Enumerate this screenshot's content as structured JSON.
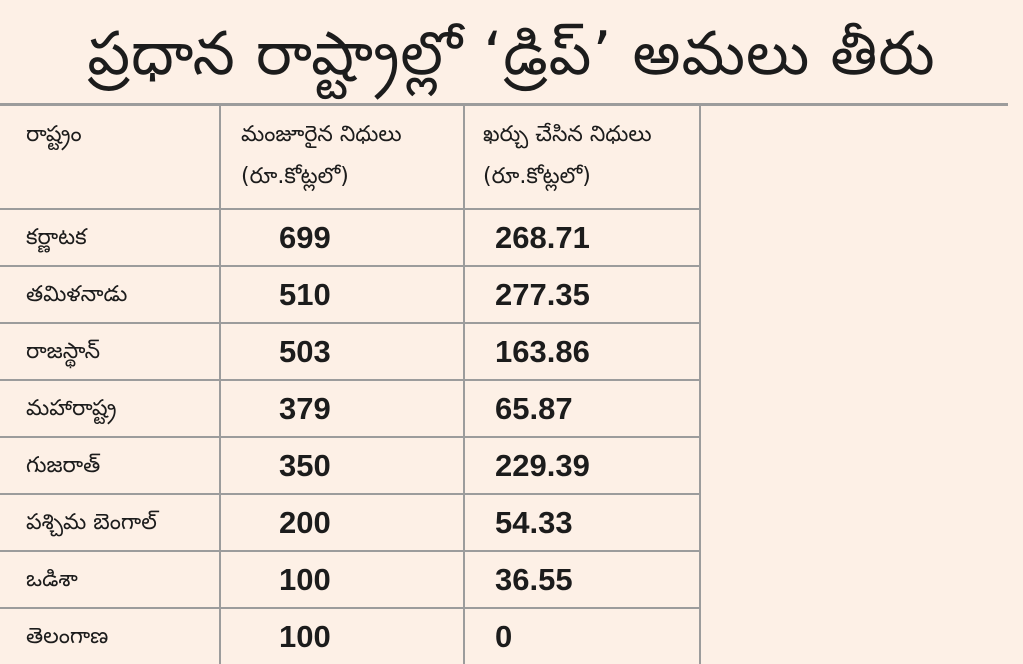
{
  "title": "ప్రధాన రాష్ట్రాల్లో ‘డ్రిప్’ అమలు తీరు",
  "table": {
    "headers": {
      "state": "రాష్ట్రం",
      "sanctioned_line1": "మంజూరైన నిధులు",
      "sanctioned_line2": "(రూ.కోట్లలో)",
      "spent_line1": "ఖర్చు చేసిన నిధులు",
      "spent_line2": "(రూ.కోట్లలో)"
    },
    "rows": [
      {
        "state": "కర్ణాటక",
        "sanctioned": "699",
        "spent": "268.71"
      },
      {
        "state": "తమిళనాడు",
        "sanctioned": "510",
        "spent": "277.35"
      },
      {
        "state": "రాజస్థాన్",
        "sanctioned": "503",
        "spent": "163.86"
      },
      {
        "state": "మహారాష్ట్ర",
        "sanctioned": "379",
        "spent": "65.87"
      },
      {
        "state": "గుజరాత్",
        "sanctioned": "350",
        "spent": "229.39"
      },
      {
        "state": "పశ్చిమ బెంగాల్",
        "sanctioned": "200",
        "spent": "54.33"
      },
      {
        "state": "ఒడిశా",
        "sanctioned": "100",
        "spent": "36.55"
      },
      {
        "state": "తెలంగాణ",
        "sanctioned": "100",
        "spent": "0"
      }
    ]
  }
}
